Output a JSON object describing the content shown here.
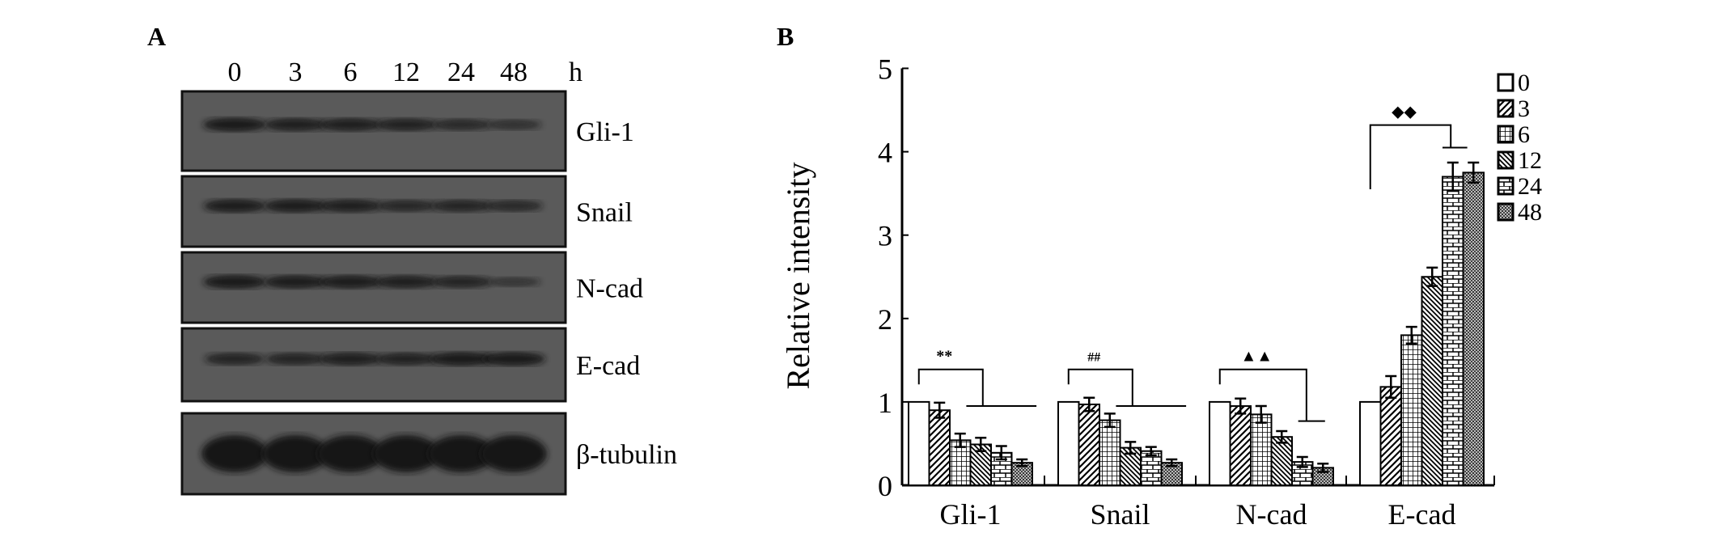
{
  "panel_a": {
    "label": "A",
    "lanes": [
      "0",
      "3",
      "6",
      "12",
      "24",
      "48"
    ],
    "unit": "h",
    "proteins": [
      {
        "name": "Gli-1",
        "band_intensity": [
          0.9,
          0.8,
          0.8,
          0.75,
          0.6,
          0.45
        ]
      },
      {
        "name": "Snail",
        "band_intensity": [
          0.85,
          0.85,
          0.8,
          0.65,
          0.7,
          0.6
        ]
      },
      {
        "name": "N-cad",
        "band_intensity": [
          0.9,
          0.85,
          0.85,
          0.8,
          0.7,
          0.35
        ]
      },
      {
        "name": "E-cad",
        "band_intensity": [
          0.7,
          0.7,
          0.8,
          0.75,
          0.9,
          0.9
        ]
      },
      {
        "name": "β-tubulin",
        "band_intensity": [
          1,
          1,
          1,
          1,
          1,
          1
        ]
      }
    ],
    "colors": {
      "membrane": "#5a5a5a",
      "band": "#151515",
      "frame": "#111111"
    }
  },
  "chart_data": {
    "type": "bar",
    "panel_label": "B",
    "title": "",
    "xlabel": "",
    "ylabel": "Relative intensity",
    "ylim": [
      0,
      5
    ],
    "yticks": [
      "0",
      "1",
      "2",
      "3",
      "4",
      "5"
    ],
    "categories": [
      "Gli-1",
      "Snail",
      "N-cad",
      "E-cad"
    ],
    "legend_position": "top-right",
    "series": [
      {
        "name": "0",
        "pattern": "blank",
        "values": [
          1.0,
          1.0,
          1.0,
          1.0
        ],
        "errors": [
          0,
          0,
          0,
          0
        ]
      },
      {
        "name": "3",
        "pattern": "diagonal",
        "values": [
          0.9,
          0.97,
          0.95,
          1.18
        ],
        "errors": [
          0.09,
          0.08,
          0.09,
          0.13
        ]
      },
      {
        "name": "6",
        "pattern": "grid",
        "values": [
          0.54,
          0.78,
          0.85,
          1.8
        ],
        "errors": [
          0.08,
          0.08,
          0.1,
          0.1
        ]
      },
      {
        "name": "12",
        "pattern": "backslash",
        "values": [
          0.49,
          0.45,
          0.58,
          2.5
        ],
        "errors": [
          0.08,
          0.07,
          0.07,
          0.11
        ]
      },
      {
        "name": "24",
        "pattern": "brick",
        "values": [
          0.39,
          0.41,
          0.28,
          3.7
        ],
        "errors": [
          0.08,
          0.05,
          0.06,
          0.17
        ]
      },
      {
        "name": "48",
        "pattern": "dots",
        "values": [
          0.27,
          0.27,
          0.21,
          3.75
        ],
        "errors": [
          0.04,
          0.04,
          0.05,
          0.12
        ]
      }
    ],
    "significance": [
      {
        "category": "Gli-1",
        "symbol": "**",
        "bracket_top": 1.39,
        "left_leg_bottom": 1.21,
        "right_level": 0.95
      },
      {
        "category": "Snail",
        "symbol": "##",
        "bracket_top": 1.39,
        "left_leg_bottom": 1.21,
        "right_level": 0.95
      },
      {
        "category": "N-cad",
        "symbol": "▲▲",
        "bracket_top": 1.39,
        "left_leg_bottom": 1.21,
        "right_level": 0.77
      },
      {
        "category": "E-cad",
        "symbol": "◆◆",
        "bracket_top": 4.32,
        "left_leg_bottom": 3.55,
        "right_level": 4.05
      }
    ]
  }
}
